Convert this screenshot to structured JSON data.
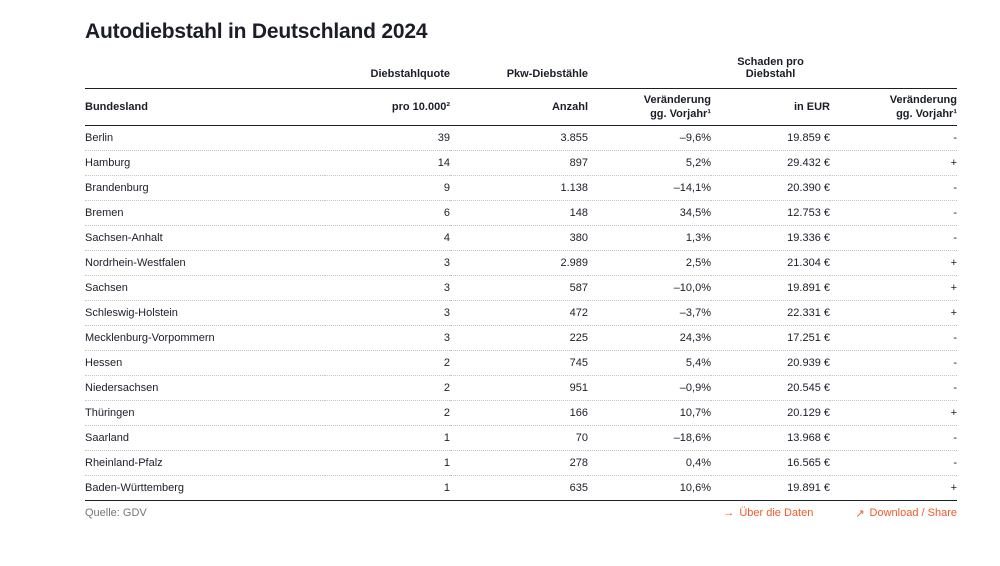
{
  "title": "Autodiebstahl in Deutschland 2024",
  "colors": {
    "accent": "#EF5A29",
    "text": "#1B1E28",
    "muted": "#767676"
  },
  "table": {
    "group_headers": {
      "diebstahlquote": "Diebstahlquote",
      "pkw_diebstaehle": "Pkw-Diebstähle",
      "schaden_line1": "Schaden pro",
      "schaden_line2": "Diebstahl"
    },
    "column_headers": {
      "bundesland": "Bundesland",
      "quote": "pro 10.000²",
      "anzahl": "Anzahl",
      "veraenderung_line1": "Veränderung",
      "veraenderung_line2": "gg. Vorjahr¹",
      "in_eur": "in EUR"
    },
    "rows": [
      {
        "bundesland": "Berlin",
        "quote": "39",
        "anzahl": "3.855",
        "veraenderung": "–9,6%",
        "schaden": "19.859 €",
        "schaden_trend": "-"
      },
      {
        "bundesland": "Hamburg",
        "quote": "14",
        "anzahl": "897",
        "veraenderung": "5,2%",
        "schaden": "29.432 €",
        "schaden_trend": "+"
      },
      {
        "bundesland": "Brandenburg",
        "quote": "9",
        "anzahl": "1.138",
        "veraenderung": "–14,1%",
        "schaden": "20.390 €",
        "schaden_trend": "-"
      },
      {
        "bundesland": "Bremen",
        "quote": "6",
        "anzahl": "148",
        "veraenderung": "34,5%",
        "schaden": "12.753 €",
        "schaden_trend": "-"
      },
      {
        "bundesland": "Sachsen-Anhalt",
        "quote": "4",
        "anzahl": "380",
        "veraenderung": "1,3%",
        "schaden": "19.336 €",
        "schaden_trend": "-"
      },
      {
        "bundesland": "Nordrhein-Westfalen",
        "quote": "3",
        "anzahl": "2.989",
        "veraenderung": "2,5%",
        "schaden": "21.304 €",
        "schaden_trend": "+"
      },
      {
        "bundesland": "Sachsen",
        "quote": "3",
        "anzahl": "587",
        "veraenderung": "–10,0%",
        "schaden": "19.891 €",
        "schaden_trend": "+"
      },
      {
        "bundesland": "Schleswig-Holstein",
        "quote": "3",
        "anzahl": "472",
        "veraenderung": "–3,7%",
        "schaden": "22.331 €",
        "schaden_trend": "+"
      },
      {
        "bundesland": "Mecklenburg-Vorpommern",
        "quote": "3",
        "anzahl": "225",
        "veraenderung": "24,3%",
        "schaden": "17.251 €",
        "schaden_trend": "-"
      },
      {
        "bundesland": "Hessen",
        "quote": "2",
        "anzahl": "745",
        "veraenderung": "5,4%",
        "schaden": "20.939 €",
        "schaden_trend": "-"
      },
      {
        "bundesland": "Niedersachsen",
        "quote": "2",
        "anzahl": "951",
        "veraenderung": "–0,9%",
        "schaden": "20.545 €",
        "schaden_trend": "-"
      },
      {
        "bundesland": "Thüringen",
        "quote": "2",
        "anzahl": "166",
        "veraenderung": "10,7%",
        "schaden": "20.129 €",
        "schaden_trend": "+"
      },
      {
        "bundesland": "Saarland",
        "quote": "1",
        "anzahl": "70",
        "veraenderung": "–18,6%",
        "schaden": "13.968 €",
        "schaden_trend": "-"
      },
      {
        "bundesland": "Rheinland-Pfalz",
        "quote": "1",
        "anzahl": "278",
        "veraenderung": "0,4%",
        "schaden": "16.565 €",
        "schaden_trend": "-"
      },
      {
        "bundesland": "Baden-Württemberg",
        "quote": "1",
        "anzahl": "635",
        "veraenderung": "10,6%",
        "schaden": "19.891 €",
        "schaden_trend": "+"
      }
    ]
  },
  "footer": {
    "source": "Quelle: GDV",
    "links": {
      "about": {
        "icon": "→",
        "label": "Über die Daten"
      },
      "download": {
        "icon": "↗",
        "label": "Download / Share"
      }
    }
  },
  "chart_data": {
    "type": "table",
    "title": "Autodiebstahl in Deutschland 2024",
    "columns": [
      "Bundesland",
      "Diebstahlquote pro 10.000²",
      "Pkw-Diebstähle Anzahl",
      "Pkw-Diebstähle Veränderung gg. Vorjahr¹ (%)",
      "Schaden pro Diebstahl in EUR",
      "Schaden pro Diebstahl Veränderung gg. Vorjahr¹"
    ],
    "rows": [
      [
        "Berlin",
        39,
        3855,
        -9.6,
        19859,
        "-"
      ],
      [
        "Hamburg",
        14,
        897,
        5.2,
        29432,
        "+"
      ],
      [
        "Brandenburg",
        9,
        1138,
        -14.1,
        20390,
        "-"
      ],
      [
        "Bremen",
        6,
        148,
        34.5,
        12753,
        "-"
      ],
      [
        "Sachsen-Anhalt",
        4,
        380,
        1.3,
        19336,
        "-"
      ],
      [
        "Nordrhein-Westfalen",
        3,
        2989,
        2.5,
        21304,
        "+"
      ],
      [
        "Sachsen",
        3,
        587,
        -10.0,
        19891,
        "+"
      ],
      [
        "Schleswig-Holstein",
        3,
        472,
        -3.7,
        22331,
        "+"
      ],
      [
        "Mecklenburg-Vorpommern",
        3,
        225,
        24.3,
        17251,
        "-"
      ],
      [
        "Hessen",
        2,
        745,
        5.4,
        20939,
        "-"
      ],
      [
        "Niedersachsen",
        2,
        951,
        -0.9,
        20545,
        "-"
      ],
      [
        "Thüringen",
        2,
        166,
        10.7,
        20129,
        "+"
      ],
      [
        "Saarland",
        1,
        70,
        -18.6,
        13968,
        "-"
      ],
      [
        "Rheinland-Pfalz",
        1,
        278,
        0.4,
        16565,
        "-"
      ],
      [
        "Baden-Württemberg",
        1,
        635,
        10.6,
        19891,
        "+"
      ]
    ],
    "source": "Quelle: GDV"
  }
}
